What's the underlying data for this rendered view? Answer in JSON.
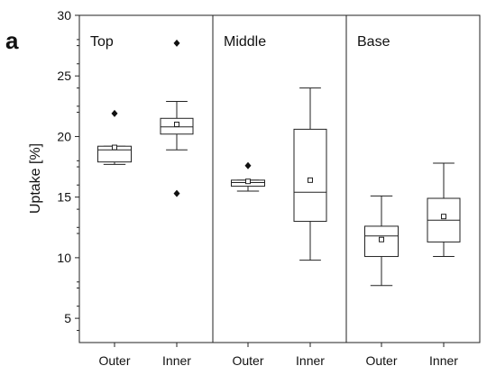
{
  "panel_letter": "a",
  "chart_data": {
    "type": "box",
    "ylabel": "Uptake [%]",
    "ylim": [
      3,
      30
    ],
    "yticks": [
      5,
      10,
      15,
      20,
      25,
      30
    ],
    "grid": false,
    "panels": [
      {
        "title": "Top",
        "categories": [
          "Outer",
          "Inner"
        ],
        "boxes": [
          {
            "category": "Outer",
            "whisker_low": 17.7,
            "q1": 17.9,
            "median": 18.9,
            "q3": 19.2,
            "whisker_high": 19.2,
            "mean": 19.1,
            "outliers": [
              21.9
            ]
          },
          {
            "category": "Inner",
            "whisker_low": 18.9,
            "q1": 20.2,
            "median": 20.8,
            "q3": 21.5,
            "whisker_high": 22.9,
            "mean": 21.0,
            "outliers": [
              27.7,
              15.3
            ]
          }
        ]
      },
      {
        "title": "Middle",
        "categories": [
          "Outer",
          "Inner"
        ],
        "boxes": [
          {
            "category": "Outer",
            "whisker_low": 15.5,
            "q1": 15.9,
            "median": 16.2,
            "q3": 16.4,
            "whisker_high": 16.4,
            "mean": 16.3,
            "outliers": [
              17.6
            ]
          },
          {
            "category": "Inner",
            "whisker_low": 9.8,
            "q1": 13.0,
            "median": 15.4,
            "q3": 20.6,
            "whisker_high": 24.0,
            "mean": 16.4,
            "outliers": []
          }
        ]
      },
      {
        "title": "Base",
        "categories": [
          "Outer",
          "Inner"
        ],
        "boxes": [
          {
            "category": "Outer",
            "whisker_low": 7.7,
            "q1": 10.1,
            "median": 11.8,
            "q3": 12.6,
            "whisker_high": 15.1,
            "mean": 11.5,
            "outliers": []
          },
          {
            "category": "Inner",
            "whisker_low": 10.1,
            "q1": 11.3,
            "median": 13.1,
            "q3": 14.9,
            "whisker_high": 17.8,
            "mean": 13.4,
            "outliers": []
          }
        ]
      }
    ]
  }
}
